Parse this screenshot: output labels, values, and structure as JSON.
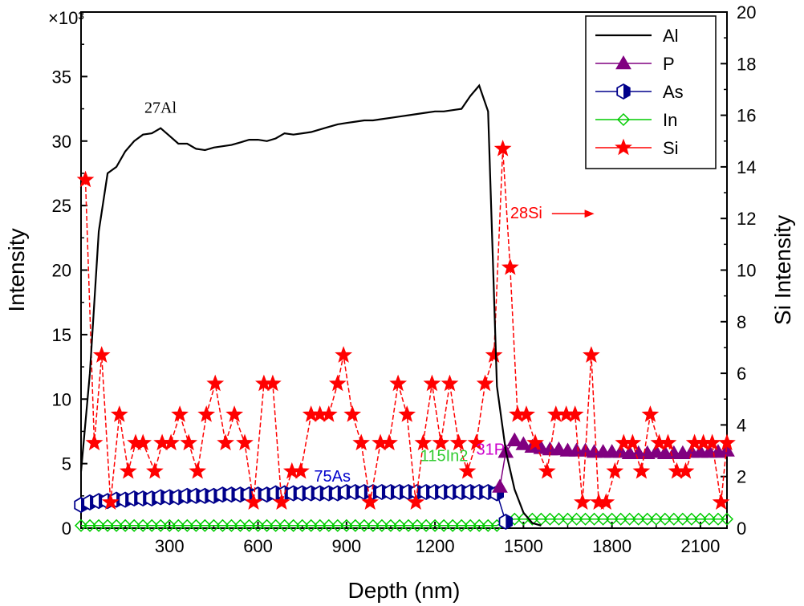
{
  "chart_data": {
    "type": "line",
    "xlabel": "Depth (nm)",
    "ylabel": "Intensity",
    "y2label": "Si Intensity",
    "y_multiplier": "×10³",
    "xlim": [
      0,
      2190
    ],
    "ylim": [
      0,
      40
    ],
    "y2lim": [
      0,
      20
    ],
    "xticks": [
      300,
      600,
      900,
      1200,
      1500,
      1800,
      2100
    ],
    "yticks": [
      0,
      5,
      10,
      15,
      20,
      25,
      30,
      35
    ],
    "y2ticks": [
      0,
      2,
      4,
      6,
      8,
      10,
      12,
      14,
      16,
      18,
      20
    ],
    "legend_position": "top-right",
    "series": [
      {
        "name": "Al",
        "axis": "left",
        "color": "#000000",
        "marker": "none",
        "x": [
          0,
          30,
          60,
          90,
          120,
          150,
          180,
          210,
          240,
          270,
          300,
          330,
          360,
          390,
          420,
          450,
          480,
          510,
          540,
          570,
          600,
          630,
          660,
          690,
          720,
          750,
          780,
          810,
          840,
          870,
          900,
          930,
          960,
          990,
          1020,
          1050,
          1080,
          1110,
          1140,
          1170,
          1200,
          1230,
          1260,
          1290,
          1320,
          1350,
          1380,
          1410,
          1440,
          1470,
          1500,
          1530,
          1560
        ],
        "values": [
          4.4,
          12.0,
          23.0,
          27.5,
          28.0,
          29.2,
          30.0,
          30.5,
          30.6,
          31.0,
          30.4,
          29.8,
          29.8,
          29.4,
          29.3,
          29.5,
          29.6,
          29.7,
          29.9,
          30.1,
          30.1,
          30.0,
          30.2,
          30.6,
          30.5,
          30.6,
          30.7,
          30.9,
          31.1,
          31.3,
          31.4,
          31.5,
          31.6,
          31.6,
          31.7,
          31.8,
          31.9,
          32.0,
          32.1,
          32.2,
          32.3,
          32.3,
          32.4,
          32.5,
          33.5,
          34.3,
          32.3,
          11.0,
          6.0,
          3.0,
          1.2,
          0.4,
          0.2
        ]
      },
      {
        "name": "P",
        "axis": "left",
        "color": "#800080",
        "marker": "triangle",
        "x": [
          1420,
          1440,
          1470,
          1500,
          1530,
          1560,
          1590,
          1620,
          1650,
          1680,
          1710,
          1740,
          1770,
          1800,
          1830,
          1860,
          1890,
          1920,
          1950,
          1980,
          2010,
          2040,
          2070,
          2100,
          2130,
          2160,
          2190
        ],
        "values": [
          3.2,
          5.9,
          6.8,
          6.5,
          6.3,
          6.2,
          6.1,
          6.1,
          6.0,
          6.0,
          6.0,
          5.9,
          5.9,
          5.9,
          5.9,
          5.8,
          5.8,
          5.8,
          5.9,
          5.8,
          5.8,
          5.8,
          5.9,
          5.9,
          5.9,
          5.9,
          6.0
        ]
      },
      {
        "name": "As",
        "axis": "left",
        "color": "#00008B",
        "marker": "half-hexagon",
        "x": [
          0,
          30,
          60,
          90,
          120,
          150,
          180,
          210,
          240,
          270,
          300,
          330,
          360,
          390,
          420,
          450,
          480,
          510,
          540,
          570,
          600,
          630,
          660,
          690,
          720,
          750,
          780,
          810,
          840,
          870,
          900,
          930,
          960,
          990,
          1020,
          1050,
          1080,
          1110,
          1140,
          1170,
          1200,
          1230,
          1260,
          1290,
          1320,
          1350,
          1380,
          1410,
          1440
        ],
        "values": [
          1.8,
          2.0,
          2.1,
          2.1,
          2.2,
          2.2,
          2.3,
          2.3,
          2.3,
          2.4,
          2.4,
          2.4,
          2.5,
          2.5,
          2.5,
          2.5,
          2.6,
          2.6,
          2.6,
          2.6,
          2.6,
          2.6,
          2.7,
          2.7,
          2.7,
          2.7,
          2.7,
          2.7,
          2.7,
          2.7,
          2.8,
          2.8,
          2.8,
          2.8,
          2.8,
          2.8,
          2.8,
          2.8,
          2.8,
          2.8,
          2.8,
          2.8,
          2.8,
          2.8,
          2.8,
          2.8,
          2.8,
          2.7,
          0.5
        ]
      },
      {
        "name": "In",
        "axis": "left",
        "color": "#00CC00",
        "marker": "diamond",
        "x": [
          0,
          30,
          60,
          90,
          120,
          150,
          180,
          210,
          240,
          270,
          300,
          330,
          360,
          390,
          420,
          450,
          480,
          510,
          540,
          570,
          600,
          630,
          660,
          690,
          720,
          750,
          780,
          810,
          840,
          870,
          900,
          930,
          960,
          990,
          1020,
          1050,
          1080,
          1110,
          1140,
          1170,
          1200,
          1230,
          1260,
          1290,
          1320,
          1350,
          1380,
          1410,
          1440,
          1470,
          1500,
          1530,
          1560,
          1590,
          1620,
          1650,
          1680,
          1710,
          1740,
          1770,
          1800,
          1830,
          1860,
          1890,
          1920,
          1950,
          1980,
          2010,
          2040,
          2070,
          2100,
          2130,
          2160,
          2190
        ],
        "values": [
          0.2,
          0.2,
          0.2,
          0.2,
          0.2,
          0.2,
          0.2,
          0.2,
          0.2,
          0.2,
          0.2,
          0.2,
          0.2,
          0.2,
          0.2,
          0.2,
          0.2,
          0.2,
          0.2,
          0.2,
          0.2,
          0.2,
          0.2,
          0.2,
          0.2,
          0.2,
          0.2,
          0.2,
          0.2,
          0.2,
          0.2,
          0.2,
          0.2,
          0.2,
          0.2,
          0.2,
          0.2,
          0.2,
          0.2,
          0.2,
          0.2,
          0.2,
          0.2,
          0.2,
          0.2,
          0.2,
          0.2,
          0.2,
          0.6,
          0.7,
          0.7,
          0.7,
          0.7,
          0.7,
          0.7,
          0.7,
          0.7,
          0.7,
          0.7,
          0.7,
          0.7,
          0.7,
          0.7,
          0.7,
          0.7,
          0.7,
          0.7,
          0.7,
          0.7,
          0.7,
          0.7,
          0.7,
          0.7,
          0.7
        ]
      },
      {
        "name": "Si",
        "axis": "right",
        "color": "#FF0000",
        "marker": "star",
        "x": [
          15,
          45,
          70,
          100,
          130,
          160,
          185,
          210,
          250,
          275,
          305,
          335,
          365,
          395,
          425,
          455,
          490,
          520,
          555,
          585,
          620,
          650,
          680,
          715,
          745,
          780,
          810,
          840,
          870,
          890,
          920,
          950,
          980,
          1015,
          1045,
          1075,
          1105,
          1135,
          1160,
          1190,
          1220,
          1250,
          1280,
          1310,
          1340,
          1370,
          1400,
          1430,
          1455,
          1480,
          1510,
          1540,
          1580,
          1610,
          1645,
          1675,
          1700,
          1730,
          1755,
          1780,
          1810,
          1840,
          1870,
          1900,
          1930,
          1960,
          1990,
          2020,
          2050,
          2080,
          2110,
          2140,
          2170,
          2190
        ],
        "values": [
          13.5,
          3.3,
          6.7,
          1.0,
          4.4,
          2.2,
          3.3,
          3.3,
          2.2,
          3.3,
          3.3,
          4.4,
          3.3,
          2.2,
          4.4,
          5.6,
          3.3,
          4.4,
          3.3,
          1.0,
          5.6,
          5.6,
          1.0,
          2.2,
          2.2,
          4.4,
          4.4,
          4.4,
          5.6,
          6.7,
          4.4,
          3.3,
          1.0,
          3.3,
          3.3,
          5.6,
          4.4,
          1.0,
          3.3,
          5.6,
          3.3,
          5.6,
          3.3,
          2.2,
          3.3,
          5.6,
          6.7,
          14.7,
          10.1,
          4.4,
          4.4,
          3.3,
          2.2,
          4.4,
          4.4,
          4.4,
          1.0,
          6.7,
          1.0,
          1.0,
          2.2,
          3.3,
          3.3,
          2.2,
          4.4,
          3.3,
          3.3,
          2.2,
          2.2,
          3.3,
          3.3,
          3.3,
          1.0,
          3.3
        ]
      }
    ],
    "annotations": [
      {
        "text": "27Al",
        "x": 215,
        "y": 32.2,
        "axis": "left",
        "color": "#000000",
        "font": "serif"
      },
      {
        "text": "28Si",
        "x": 1455,
        "y": 12.0,
        "axis": "right",
        "color": "#FF0000",
        "font": "sans",
        "arrow_to_x": 1740
      },
      {
        "text": "75As",
        "x": 790,
        "y": 3.6,
        "axis": "left",
        "color": "#0000CC",
        "font": "sans"
      },
      {
        "text": "115In2",
        "x": 1150,
        "y": 5.2,
        "axis": "left",
        "color": "#33CC33",
        "font": "sans"
      },
      {
        "text": "31P",
        "x": 1340,
        "y": 5.7,
        "axis": "left",
        "color": "#CC00CC",
        "font": "sans"
      }
    ]
  }
}
